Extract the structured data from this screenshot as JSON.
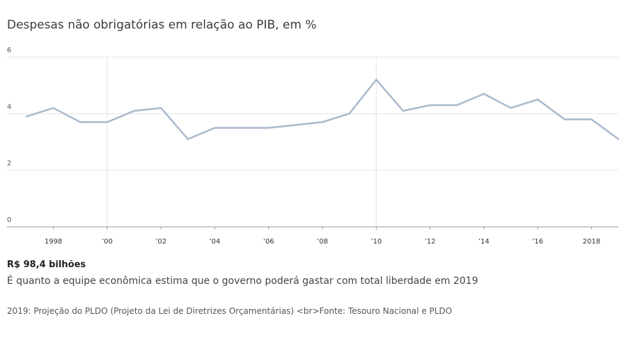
{
  "chart_data": {
    "type": "line",
    "title": "Despesas não obrigatórias em relação ao PIB, em %",
    "x": [
      1997,
      1998,
      1999,
      2000,
      2001,
      2002,
      2003,
      2004,
      2005,
      2006,
      2007,
      2008,
      2009,
      2010,
      2011,
      2012,
      2013,
      2014,
      2015,
      2016,
      2017,
      2018,
      2019
    ],
    "series": [
      {
        "values": [
          3.9,
          4.2,
          3.7,
          3.7,
          4.1,
          4.2,
          3.1,
          3.5,
          3.5,
          3.5,
          3.6,
          3.7,
          4.0,
          5.2,
          4.1,
          4.3,
          4.3,
          4.7,
          4.2,
          4.5,
          3.8,
          3.8,
          3.1
        ]
      }
    ],
    "x_ticks": [
      {
        "value": 1998,
        "label": "1998"
      },
      {
        "value": 2000,
        "label": "’00"
      },
      {
        "value": 2002,
        "label": "’02"
      },
      {
        "value": 2004,
        "label": "’04"
      },
      {
        "value": 2006,
        "label": "’06"
      },
      {
        "value": 2008,
        "label": "’08"
      },
      {
        "value": 2010,
        "label": "’10"
      },
      {
        "value": 2012,
        "label": "’12"
      },
      {
        "value": 2014,
        "label": "’14"
      },
      {
        "value": 2016,
        "label": "’16"
      },
      {
        "value": 2018,
        "label": "2018"
      }
    ],
    "y_ticks": [
      0,
      2,
      4,
      6
    ],
    "ylim": [
      0,
      6
    ],
    "xlim": [
      1997,
      2019
    ],
    "vertical_reference_lines": [
      2000,
      2010
    ],
    "grid": true,
    "line_color": "#a9b9cc",
    "grid_color": "#e3e3e3"
  },
  "highlight": {
    "value": "R$ 98,4 bilhões",
    "description": "É quanto a equipe econômica estima que o governo poderá gastar com total liberdade em 2019"
  },
  "note": "2019: Projeção do PLDO (Projeto da Lei de Diretrizes Orçamentárias) <br>Fonte: Tesouro Nacional e PLDO"
}
